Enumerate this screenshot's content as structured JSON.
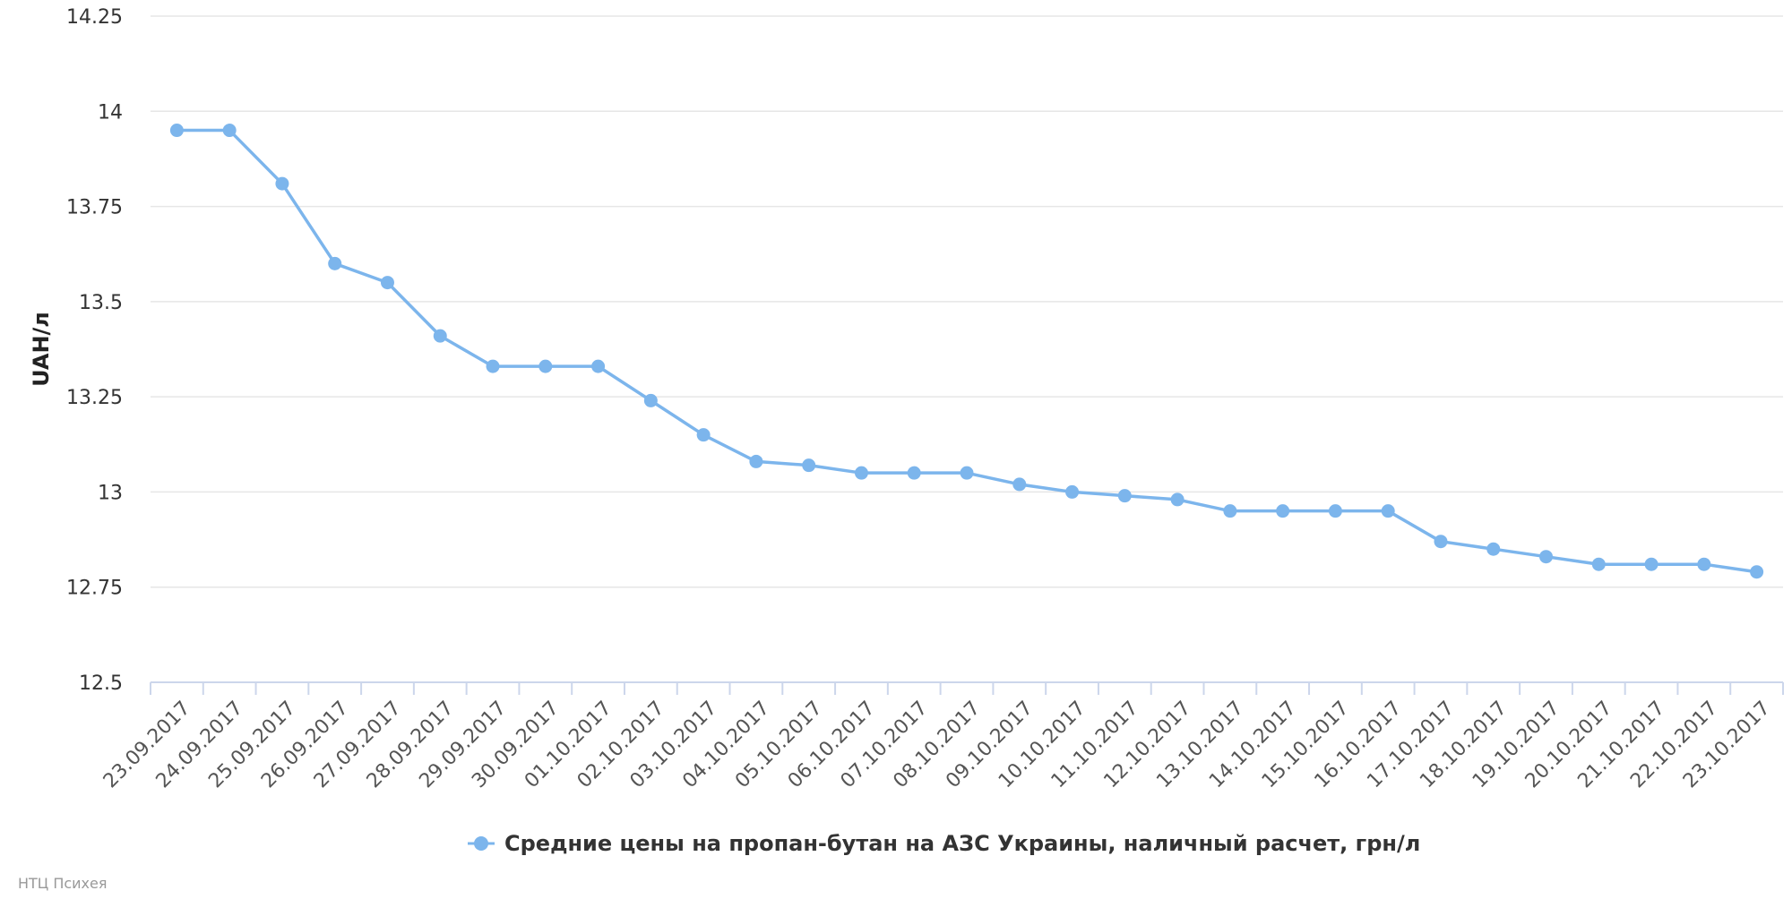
{
  "colors": {
    "series": "#7cb5ec",
    "grid": "#e6e6e6",
    "axis": "#ccd6eb"
  },
  "credits": "НТЦ Психея",
  "chart_data": {
    "type": "line",
    "ylabel": "UAH/л",
    "ylim": [
      12.5,
      14.25
    ],
    "yticks": [
      "12.5",
      "12.75",
      "13",
      "13.25",
      "13.5",
      "13.75",
      "14",
      "14.25"
    ],
    "grid": true,
    "legend_position": "bottom-center",
    "categories": [
      "23.09.2017",
      "24.09.2017",
      "25.09.2017",
      "26.09.2017",
      "27.09.2017",
      "28.09.2017",
      "29.09.2017",
      "30.09.2017",
      "01.10.2017",
      "02.10.2017",
      "03.10.2017",
      "04.10.2017",
      "05.10.2017",
      "06.10.2017",
      "07.10.2017",
      "08.10.2017",
      "09.10.2017",
      "10.10.2017",
      "11.10.2017",
      "12.10.2017",
      "13.10.2017",
      "14.10.2017",
      "15.10.2017",
      "16.10.2017",
      "17.10.2017",
      "18.10.2017",
      "19.10.2017",
      "20.10.2017",
      "21.10.2017",
      "22.10.2017",
      "23.10.2017"
    ],
    "series": [
      {
        "name": "Средние цены на пропан-бутан на АЗС Украины, наличный расчет, грн/л",
        "values": [
          13.95,
          13.95,
          13.81,
          13.6,
          13.55,
          13.41,
          13.33,
          13.33,
          13.33,
          13.24,
          13.15,
          13.08,
          13.07,
          13.05,
          13.05,
          13.05,
          13.02,
          13.0,
          12.99,
          12.98,
          12.95,
          12.95,
          12.95,
          12.95,
          12.87,
          12.85,
          12.83,
          12.81,
          12.81,
          12.81,
          12.79
        ]
      }
    ]
  }
}
